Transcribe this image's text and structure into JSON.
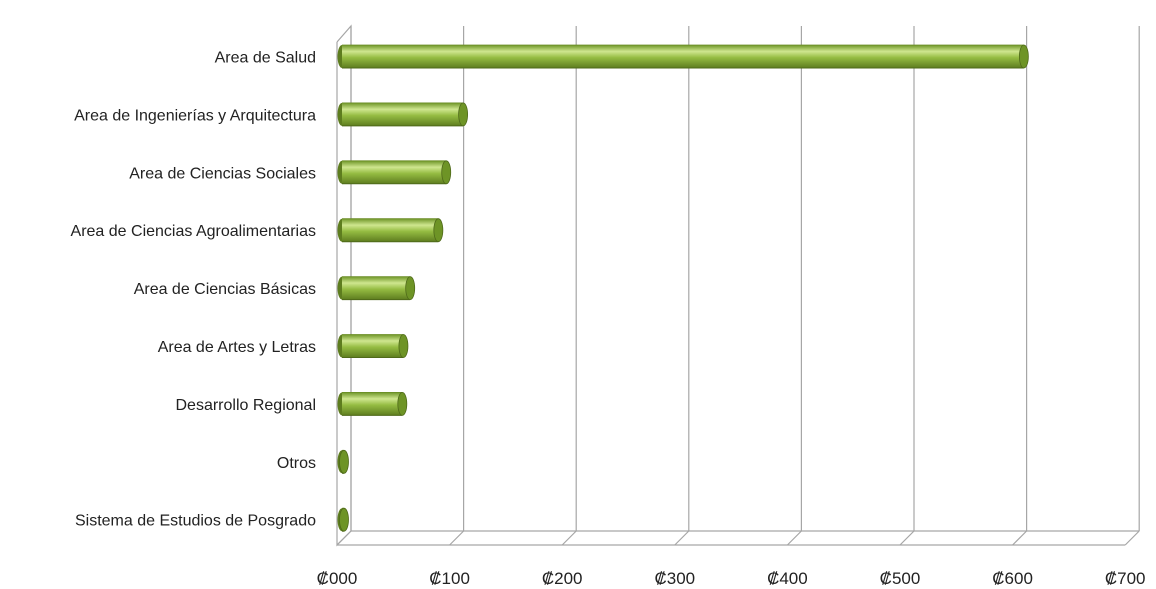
{
  "chart_data": {
    "type": "bar",
    "orientation": "horizontal",
    "style": "3d-cylinder",
    "categories": [
      "Area de Salud",
      "Area de Ingenierías y Arquitectura",
      "Area de Ciencias Sociales",
      "Area de Ciencias Agroalimentarias",
      "Area de Ciencias Básicas",
      "Area de Artes y Letras",
      "Desarrollo Regional",
      "Otros",
      "Sistema de Estudios de Posgrado"
    ],
    "values": [
      610,
      112,
      97,
      90,
      65,
      59,
      58,
      5,
      1
    ],
    "xlim": [
      0,
      700
    ],
    "x_ticks": [
      0,
      100,
      200,
      300,
      400,
      500,
      600,
      700
    ],
    "x_tick_labels": [
      "₡000",
      "₡100",
      "₡200",
      "₡300",
      "₡400",
      "₡500",
      "₡600",
      "₡700"
    ],
    "title": "",
    "xlabel": "",
    "ylabel": "",
    "grid": true,
    "legend": "none",
    "colors": {
      "bar": "#8fb63c",
      "bar_highlight": "#cfe68f",
      "bar_shadow": "#5e7d1f",
      "bar_cap": "#6e9426",
      "grid": "#a6a6a6",
      "text": "#222222"
    }
  }
}
